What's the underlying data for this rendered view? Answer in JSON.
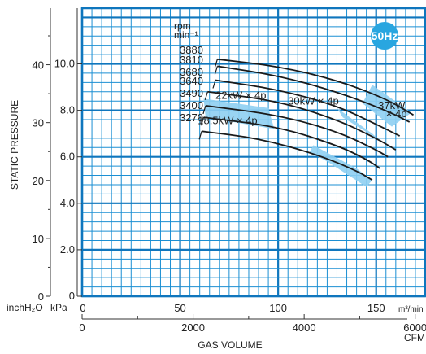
{
  "chart_data": {
    "type": "line",
    "badge": "50Hz",
    "ylabel": "STATIC PRESSURE",
    "xlabel": "GAS VOLUME",
    "units": {
      "inch": "inchH₂O",
      "kpa": "kPa",
      "m3": "m³/min",
      "cfm": "CFM"
    },
    "rpm_label": "rpm",
    "rpm_unit": "min⁻¹",
    "x_m3": {
      "range": [
        0,
        175
      ],
      "ticks": [
        0,
        50,
        100,
        150
      ]
    },
    "x_cfm": {
      "ticks": [
        0,
        2000,
        4000,
        6000
      ],
      "minor": [
        1000,
        3000,
        5000
      ]
    },
    "y_kpa": {
      "range": [
        0,
        12.4
      ],
      "ticks": [
        0,
        2.0,
        4.0,
        6.0,
        8.0,
        10.0
      ]
    },
    "y_inch": {
      "ticks": [
        0,
        10,
        20,
        30,
        40
      ],
      "minor": [
        5,
        15,
        25,
        35,
        45
      ]
    },
    "rpm_curves": [
      {
        "rpm": "3880",
        "points": [
          [
            69,
            10.2
          ],
          [
            100,
            9.9
          ],
          [
            130,
            9.3
          ],
          [
            155,
            8.5
          ],
          [
            169,
            7.8
          ]
        ]
      },
      {
        "rpm": "3810",
        "points": [
          [
            69,
            9.9
          ],
          [
            100,
            9.5
          ],
          [
            130,
            8.8
          ],
          [
            155,
            8.0
          ],
          [
            167,
            7.5
          ]
        ]
      },
      {
        "rpm": "3680",
        "points": [
          [
            68,
            9.3
          ],
          [
            100,
            8.9
          ],
          [
            130,
            8.2
          ],
          [
            150,
            7.4
          ],
          [
            162,
            6.9
          ]
        ]
      },
      {
        "rpm": "3640",
        "points": [
          [
            64,
            8.8
          ],
          [
            100,
            8.4
          ],
          [
            130,
            7.6
          ],
          [
            150,
            6.8
          ],
          [
            160,
            6.3
          ]
        ]
      },
      {
        "rpm": "3490",
        "points": [
          [
            63,
            8.2
          ],
          [
            100,
            7.8
          ],
          [
            130,
            7.1
          ],
          [
            150,
            6.3
          ],
          [
            156,
            6.0
          ]
        ]
      },
      {
        "rpm": "3400",
        "points": [
          [
            62,
            7.7
          ],
          [
            100,
            7.3
          ],
          [
            130,
            6.5
          ],
          [
            145,
            5.9
          ],
          [
            152,
            5.5
          ]
        ]
      },
      {
        "rpm": "3270",
        "points": [
          [
            61,
            7.1
          ],
          [
            90,
            6.8
          ],
          [
            120,
            6.1
          ],
          [
            140,
            5.4
          ],
          [
            148,
            5.0
          ]
        ]
      }
    ],
    "motor_bands": [
      {
        "label": "18.5kW × 4p",
        "points": [
          [
            118,
            6.5
          ],
          [
            140,
            5.5
          ],
          [
            148,
            5.0
          ],
          [
            145,
            4.7
          ],
          [
            125,
            5.8
          ],
          [
            116,
            6.2
          ]
        ]
      },
      {
        "label": "22kW × 4p",
        "points": [
          [
            62,
            8.5
          ],
          [
            95,
            8.1
          ],
          [
            98,
            7.2
          ],
          [
            63,
            7.7
          ]
        ]
      },
      {
        "label": "30kW × 4p",
        "points": [
          [
            130,
            8.1
          ],
          [
            148,
            7.0
          ],
          [
            152,
            6.7
          ],
          [
            133,
            7.7
          ]
        ]
      },
      {
        "label": "37kW × 4p",
        "points": [
          [
            148,
            9.1
          ],
          [
            168,
            7.9
          ],
          [
            158,
            7.3
          ],
          [
            143,
            8.3
          ]
        ]
      }
    ],
    "band_label_positions": [
      {
        "text": "18.5kW × 4p",
        "x": 59,
        "y": 7.4
      },
      {
        "text": "22kW × 4p",
        "x": 68,
        "y": 8.5
      },
      {
        "text": "30kW × 4p",
        "x": 105,
        "y": 8.25
      },
      {
        "text": "37kW",
        "x": 151,
        "y": 8.05
      },
      {
        "text": "× 4p",
        "x": 155,
        "y": 7.7
      }
    ],
    "colors": {
      "grid": "#1b8fd3",
      "grid_major": "#0f76bd",
      "curve": "#1a1a1a",
      "band_fill": "#8ecff2",
      "badge_bg": "#29a6e0"
    }
  }
}
